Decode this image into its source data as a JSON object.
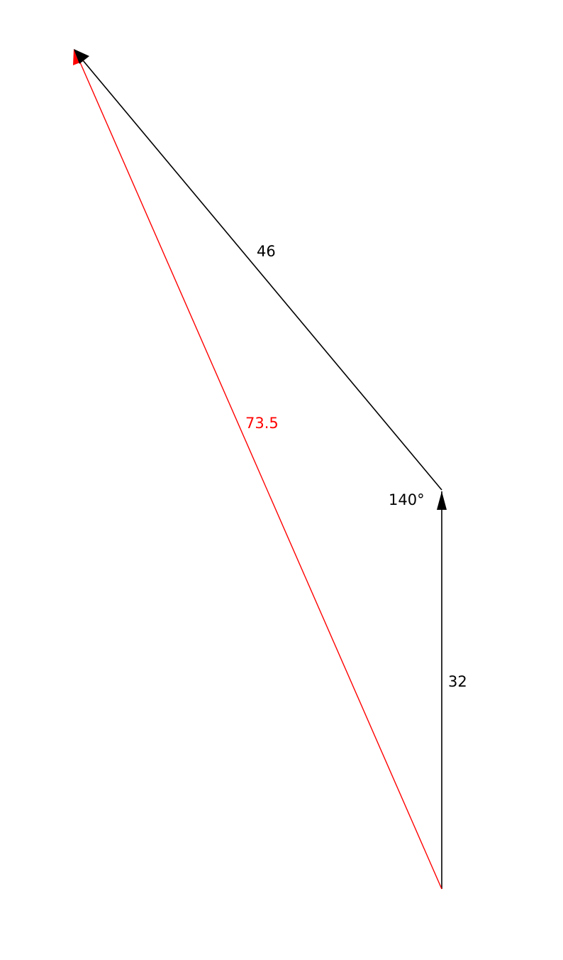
{
  "vectors": {
    "a": {
      "magnitude_label": "32",
      "color": "#000000"
    },
    "b": {
      "magnitude_label": "46",
      "color": "#000000"
    },
    "resultant": {
      "magnitude_label": "73.5",
      "color": "#ff0000"
    }
  },
  "angle_label": "140°"
}
